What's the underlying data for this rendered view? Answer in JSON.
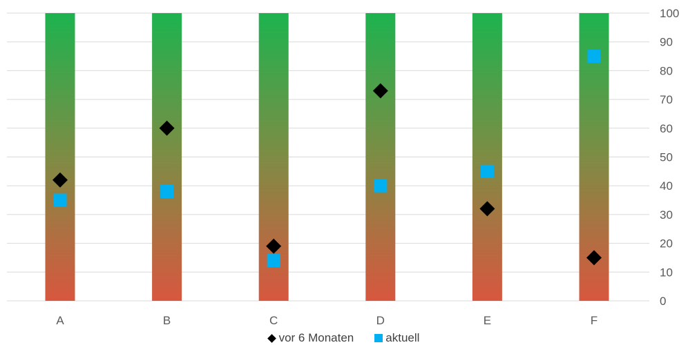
{
  "colors": {
    "bar_top": "#1db34f",
    "bar_mid": "#7e8c44",
    "bar_bottom": "#d8573f",
    "series_before": "#000000",
    "series_current": "#00b0f0",
    "grid": "#d9d9d9",
    "text": "#595959"
  },
  "chart_data": {
    "type": "scatter",
    "title": "",
    "categories": [
      "A",
      "B",
      "C",
      "D",
      "E",
      "F"
    ],
    "ylim": [
      0,
      100
    ],
    "yticks": [
      0,
      10,
      20,
      30,
      40,
      50,
      60,
      70,
      80,
      90,
      100
    ],
    "y_axis_side": "right",
    "grid": true,
    "background_bars": {
      "description": "gradient columns from red (0) to green (100)",
      "value": 100
    },
    "series": [
      {
        "name": "vor 6 Monaten",
        "marker": "diamond-icon",
        "values": [
          42,
          60,
          19,
          73,
          32,
          15
        ]
      },
      {
        "name": "aktuell",
        "marker": "square-icon",
        "values": [
          35,
          38,
          14,
          40,
          45,
          85
        ]
      }
    ],
    "legend_position": "bottom"
  }
}
